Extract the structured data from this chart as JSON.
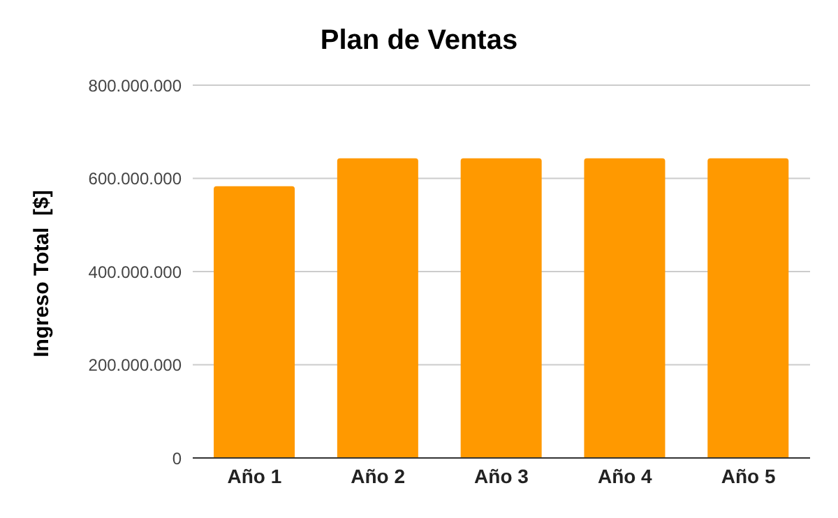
{
  "chart_data": {
    "type": "bar",
    "title": "Plan de Ventas",
    "ylabel": "Ingreso Total  [$]",
    "categories": [
      "Año 1",
      "Año 2",
      "Año 3",
      "Año 4",
      "Año 5"
    ],
    "values": [
      583000000,
      643000000,
      643000000,
      643000000,
      643000000
    ],
    "color": "#ff9900",
    "ylim": [
      0,
      800000000
    ],
    "yticks": [
      0,
      {
        "value": 200000000,
        "label": "200.000.000"
      },
      {
        "value": 400000000,
        "label": "400.000.000"
      },
      {
        "value": 600000000,
        "label": "600.000.000"
      },
      {
        "value": 800000000,
        "label": "800.000.000"
      }
    ],
    "grid": "y"
  }
}
